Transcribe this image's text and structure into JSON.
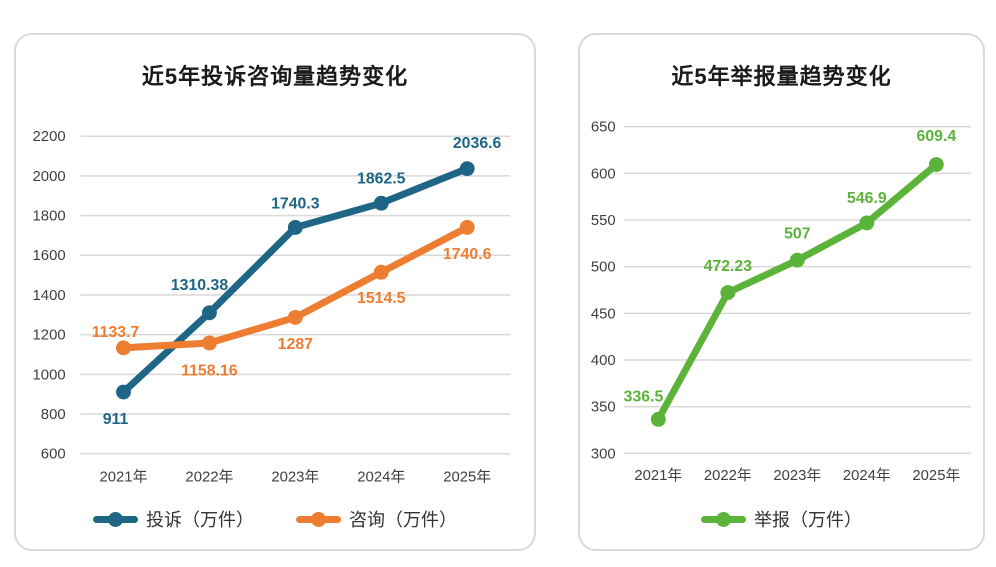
{
  "colors": {
    "grid": "#d9d9d9",
    "tick_text": "#404040",
    "title_text": "#1a1a1a",
    "legend_text": "#333333",
    "card_border": "#d9d9d9",
    "background": "#ffffff"
  },
  "chart_data": [
    {
      "type": "line",
      "title": "近5年投诉咨询量趋势变化",
      "categories": [
        "2021年",
        "2022年",
        "2023年",
        "2024年",
        "2025年"
      ],
      "ylim": [
        600,
        2200
      ],
      "ytick_step": 200,
      "grid": true,
      "legend_position": "bottom",
      "series": [
        {
          "name": "投诉（万件）",
          "color": "#1F6586",
          "values": [
            911,
            1310.38,
            1740.3,
            1862.5,
            2036.6
          ],
          "labels": [
            "911",
            "1310.38",
            "1740.3",
            "1862.5",
            "2036.6"
          ],
          "label_offsets": [
            [
              -8,
              27
            ],
            [
              -10,
              -28
            ],
            [
              0,
              -24
            ],
            [
              0,
              -25
            ],
            [
              10,
              -26
            ]
          ]
        },
        {
          "name": "咨询（万件）",
          "color": "#ED7D31",
          "values": [
            1133.7,
            1158.16,
            1287,
            1514.5,
            1740.6
          ],
          "labels": [
            "1133.7",
            "1158.16",
            "1287",
            "1514.5",
            "1740.6"
          ],
          "label_offsets": [
            [
              -8,
              -16
            ],
            [
              0,
              28
            ],
            [
              0,
              27
            ],
            [
              0,
              26
            ],
            [
              0,
              27
            ]
          ]
        }
      ]
    },
    {
      "type": "line",
      "title": "近5年举报量趋势变化",
      "categories": [
        "2021年",
        "2022年",
        "2023年",
        "2024年",
        "2025年"
      ],
      "ylim": [
        300,
        650
      ],
      "ytick_step": 50,
      "grid": true,
      "legend_position": "bottom",
      "series": [
        {
          "name": "举报（万件）",
          "color": "#5BB339",
          "values": [
            336.5,
            472.23,
            507,
            546.9,
            609.4
          ],
          "labels": [
            "336.5",
            "472.23",
            "507",
            "546.9",
            "609.4"
          ],
          "label_offsets": [
            [
              -15,
              -23
            ],
            [
              0,
              -27
            ],
            [
              0,
              -27
            ],
            [
              0,
              -25
            ],
            [
              0,
              -29
            ]
          ]
        }
      ]
    }
  ]
}
